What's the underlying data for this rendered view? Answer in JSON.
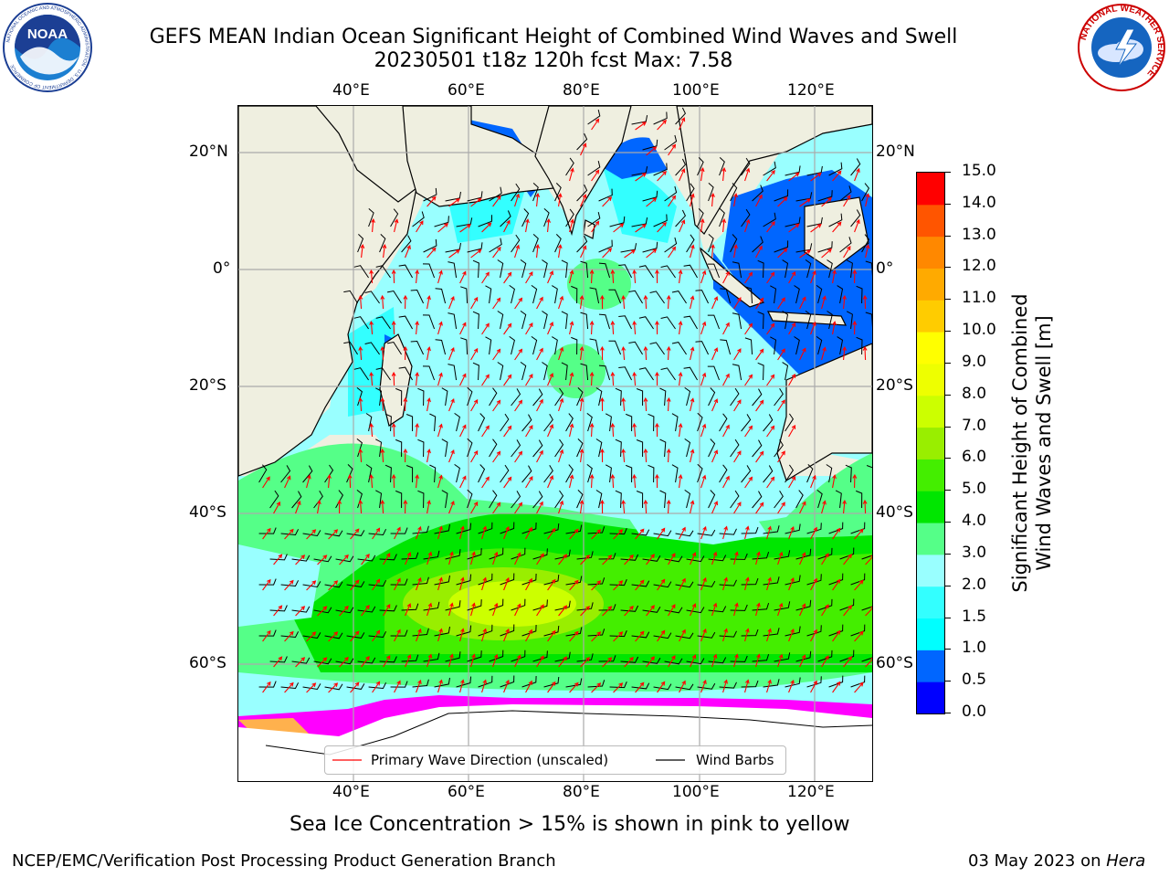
{
  "title": {
    "line1": "GEFS MEAN Indian Ocean Significant Height of Combined Wind Waves and Swell",
    "line2": "20230501 t18z 120h fcst   Max: 7.58"
  },
  "logos": {
    "noaa_text": "NOAA",
    "noaa_ring": "NATIONAL OCEANIC AND ATMOSPHERIC ADMINISTRATION · U.S. DEPARTMENT OF COMMERCE",
    "nws_ring": "NATIONAL WEATHER SERVICE"
  },
  "map": {
    "lon_ticks": [
      "40°E",
      "60°E",
      "80°E",
      "100°E",
      "120°E"
    ],
    "lat_ticks": [
      "20°N",
      "0°",
      "20°S",
      "40°S",
      "60°S"
    ],
    "field": "Significant Height of Combined Wind Waves and Swell",
    "units": "m",
    "max": 7.58,
    "colors": {
      "land": "#efefe0",
      "wave_arrow": "#ff0000",
      "wind_barb": "#000000",
      "sea_ice_low": "#ff00ff",
      "sea_ice_high": "#ffb14d"
    }
  },
  "legend": {
    "items": [
      {
        "label": "Primary Wave Direction (unscaled)",
        "color": "#ff0000"
      },
      {
        "label": "Wind Barbs",
        "color": "#000000"
      }
    ]
  },
  "colorbar": {
    "title_line1": "Significant Height of Combined",
    "title_line2": "Wind Waves and Swell [m]",
    "labels": [
      "0.0",
      "0.5",
      "1.0",
      "1.5",
      "2.0",
      "3.0",
      "4.0",
      "5.0",
      "6.0",
      "7.0",
      "8.0",
      "9.0",
      "10.0",
      "11.0",
      "12.0",
      "13.0",
      "14.0",
      "15.0"
    ],
    "colors": [
      "#0000ff",
      "#0066ff",
      "#00ffff",
      "#33ffff",
      "#99ffff",
      "#55ff88",
      "#00e600",
      "#44ee00",
      "#99ee00",
      "#ccff00",
      "#eeff00",
      "#ffff00",
      "#ffcc00",
      "#ffaa00",
      "#ff8800",
      "#ff5500",
      "#ff0000"
    ]
  },
  "caption": "Sea Ice Concentration > 15% is shown in pink to yellow",
  "footer": {
    "left": "NCEP/EMC/Verification Post Processing Product Generation Branch",
    "right_date": "03 May 2023 on",
    "right_host": "Hera"
  }
}
